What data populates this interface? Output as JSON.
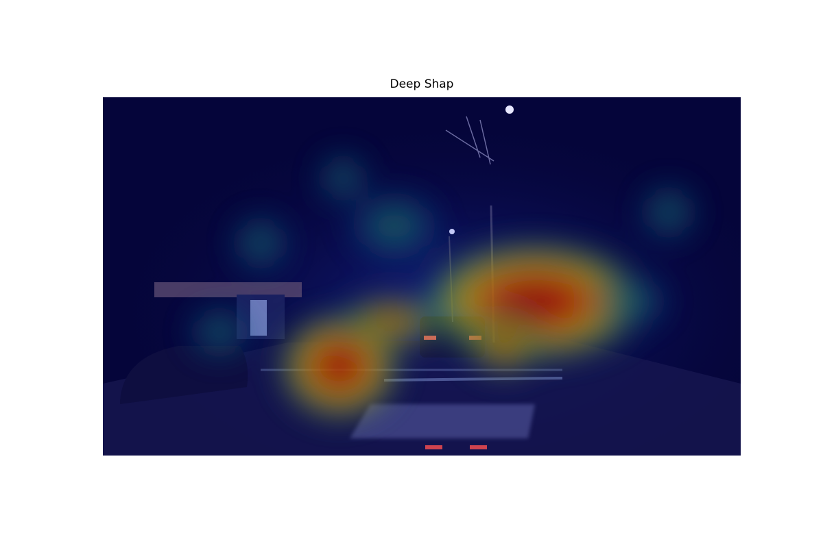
{
  "title": "Deep Shap"
}
